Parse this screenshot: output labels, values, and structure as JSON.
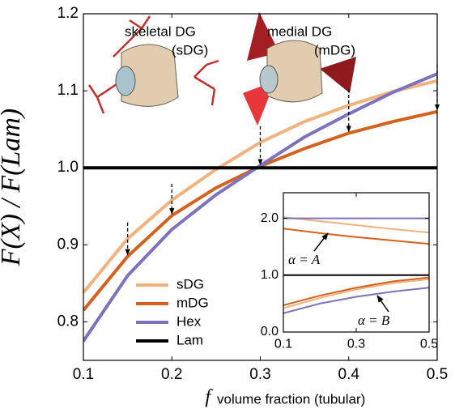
{
  "chart_data": [
    {
      "type": "line",
      "ylabel": "F(X) / F(Lam)",
      "xlabel_symbol": "f",
      "xlabel": "volume fraction (tubular)",
      "annotations": [
        "skeletal DG",
        "(sDG)",
        "medial DG",
        "(mDG)"
      ],
      "x": [
        0.1,
        0.15,
        0.2,
        0.25,
        0.3,
        0.35,
        0.4,
        0.45,
        0.5
      ],
      "series": [
        {
          "name": "sDG",
          "color": "#f2b27e",
          "values": [
            0.838,
            0.908,
            0.958,
            0.998,
            1.033,
            1.06,
            1.081,
            1.099,
            1.113
          ]
        },
        {
          "name": "mDG",
          "color": "#d4621f",
          "values": [
            0.815,
            0.885,
            0.938,
            0.974,
            1.002,
            1.025,
            1.045,
            1.06,
            1.073
          ]
        },
        {
          "name": "Hex",
          "color": "#7d72bd",
          "values": [
            0.775,
            0.86,
            0.92,
            0.965,
            1.003,
            1.04,
            1.07,
            1.098,
            1.122
          ]
        },
        {
          "name": "Lam",
          "color": "#000000",
          "values": [
            1,
            1,
            1,
            1,
            1,
            1,
            1,
            1,
            1
          ]
        }
      ],
      "xlim": [
        0.1,
        0.5
      ],
      "ylim": [
        0.75,
        1.2
      ],
      "xticks": [
        0.1,
        0.2,
        0.3,
        0.4,
        0.5
      ],
      "yticks": [
        0.8,
        0.9,
        {
          "value": 1,
          "label": "1.0"
        },
        1.1,
        1.2
      ],
      "legend": "lower left"
    },
    {
      "type": "line",
      "annotations": [
        "α = A",
        "α = B"
      ],
      "x": [
        0.1,
        0.2,
        0.3,
        0.4,
        0.5
      ],
      "series": [
        {
          "color": "#f2b27e",
          "values": [
            2.02,
            1.95,
            1.88,
            1.81,
            1.75
          ]
        },
        {
          "color": "#d4621f",
          "values": [
            1.82,
            1.74,
            1.67,
            1.61,
            1.55
          ]
        },
        {
          "color": "#7d72bd",
          "values": [
            2,
            2,
            2,
            2,
            2
          ]
        },
        {
          "color": "#000000",
          "values": [
            1,
            1,
            1,
            1,
            1
          ]
        },
        {
          "color": "#f2b27e",
          "values": [
            0.42,
            0.6,
            0.75,
            0.86,
            0.93
          ]
        },
        {
          "color": "#d4621f",
          "values": [
            0.47,
            0.64,
            0.78,
            0.89,
            0.96
          ]
        },
        {
          "color": "#7d72bd",
          "values": [
            0.33,
            0.5,
            0.62,
            0.71,
            0.78
          ]
        }
      ],
      "xlim": [
        0.1,
        0.5
      ],
      "ylim": [
        0,
        2.45
      ],
      "xticks": [
        0.1,
        0.3,
        0.5
      ],
      "yticks": [
        {
          "value": 0,
          "label": "0.0"
        },
        {
          "value": 1,
          "label": "1.0"
        },
        {
          "value": 2,
          "label": "2.0"
        }
      ]
    }
  ]
}
